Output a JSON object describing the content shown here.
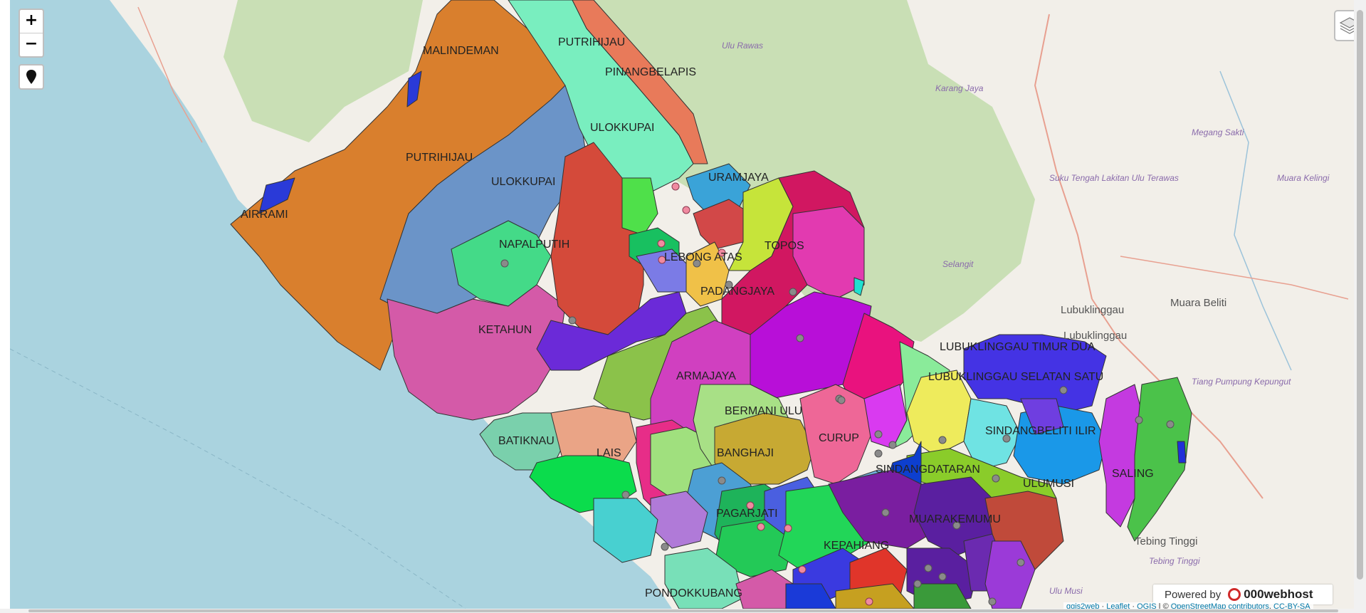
{
  "controls": {
    "zoom_in": "+",
    "zoom_out": "−"
  },
  "icons": {
    "locate": "map-marker-icon",
    "layers": "layers-icon"
  },
  "regions": [
    "MALINDEMAN",
    "PUTRIHIJAU",
    "PINANGBELAPIS",
    "ULOKKUPAI",
    "PUTRIHIJAU",
    "ULOKKUPAI",
    "AIRRAMI",
    "URAMJAYA",
    "NAPALPUTIH",
    "LEBONG ATAS",
    "TOPOS",
    "PADANGJAYA",
    "KETAHUN",
    "ARMAJAYA",
    "BERMANI ULU",
    "LUBUKLINGGAU TIMUR DUA",
    "LUBUKLINGGAU SELATAN SATU",
    "SINDANGBELITI ILIR",
    "BATIKNAU",
    "CURUP",
    "BANGHAJI",
    "LAIS",
    "SINDANGDATARAN",
    "ULUMUSI",
    "SALING",
    "PAGARJATI",
    "MUARAKEMUMU",
    "KEPAHIANG",
    "PONDOKKUBANG"
  ],
  "basemap_places": [
    "Ulu Rawas",
    "Karang Jaya",
    "Megang Sakti",
    "Suku Tengah Lakitan Ulu Terawas",
    "Muara Kelingi",
    "Selangit",
    "Lubuklinggau",
    "Muara Beliti",
    "Lubuklinggau",
    "Tiang Pumpung Kepungut",
    "Tebing Tinggi",
    "Tebing Tinggi",
    "Ulu Musi"
  ],
  "powered_by": {
    "label": "Powered by",
    "brand": "000webhost"
  },
  "attribution": {
    "qgis2web": "qgis2web",
    "sep1": " · ",
    "leaflet": "Leaflet",
    "sep2": " · ",
    "qgis": "QGIS",
    "sep3": " | © ",
    "osm": "OpenStreetMap contributors",
    "sep4": ", ",
    "license": "CC-BY-SA"
  },
  "colors": {
    "sea": "#aad3df",
    "land": "#f2efe9",
    "forest": "#c8dfb4"
  }
}
